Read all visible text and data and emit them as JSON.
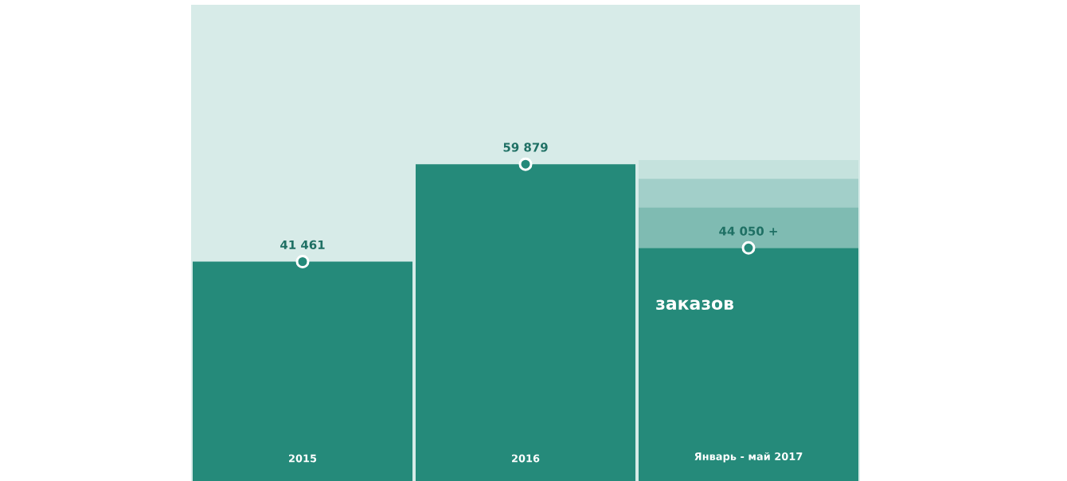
{
  "chart_data": {
    "type": "bar",
    "stacked": true,
    "categories": [
      "2015",
      "2016",
      "Январь - май 2017"
    ],
    "series": [
      {
        "color": "#258a7a",
        "values": [
          41461,
          59879,
          44050
        ],
        "value_labels": [
          "41 461",
          "59 879",
          "44 050 +"
        ]
      },
      {
        "color": "#7fbbb2",
        "values": [
          null,
          null,
          7700
        ]
      },
      {
        "color": "#a2cfc9",
        "values": [
          null,
          null,
          5400
        ]
      },
      {
        "color": "#c5e2dd",
        "values": [
          null,
          null,
          3500
        ]
      },
      {
        "type": "scatter",
        "color": "#258a7a",
        "values": [
          41461,
          59879,
          44050
        ]
      }
    ],
    "ylim": [
      0,
      90000
    ],
    "marker": "circle",
    "annotations": [
      "заказов"
    ]
  }
}
